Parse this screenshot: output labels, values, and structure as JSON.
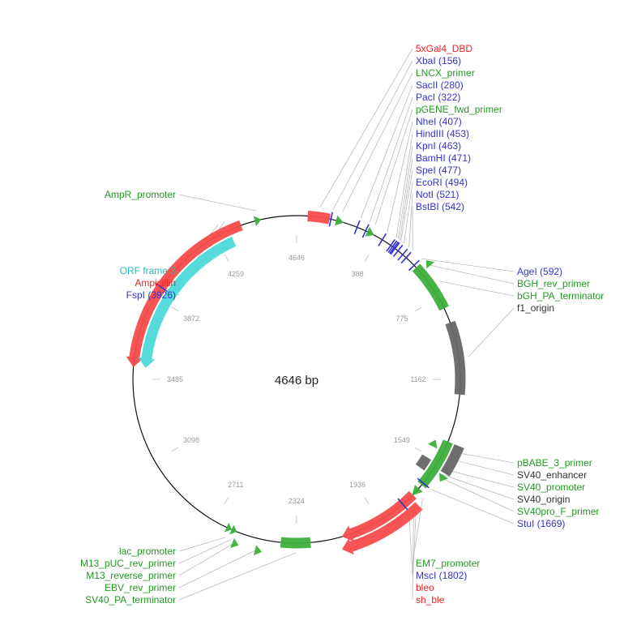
{
  "map": {
    "length": 4646,
    "center_label": "4646 bp",
    "ticks": [
      0,
      388,
      775,
      1162,
      1549,
      1936,
      2324,
      2711,
      3098,
      3485,
      3872,
      4259
    ],
    "tick_labels": [
      "4646",
      "388",
      "775",
      "1162",
      "1549",
      "1936",
      "2324",
      "2711",
      "3098",
      "3485",
      "3872",
      "4259"
    ]
  },
  "colors": {
    "orange_red": "#f74b4b",
    "cyan": "#4dd9d9",
    "green": "#3daf3d",
    "gray": "#666666",
    "blue": "#3333cc",
    "label_red": "#ee2222",
    "label_green": "#229922",
    "label_dark": "#333333",
    "label_cyan": "#22bbbb"
  },
  "features": [
    {
      "name": "5xGal4_DBD",
      "type": "feature",
      "start": 50,
      "end": 150,
      "dir": 0,
      "color": "#f74b4b",
      "track": 0
    },
    {
      "name": "LNCX_primer",
      "type": "primer",
      "start": 180,
      "end": 215,
      "dir": 1,
      "color": "#3daf3d",
      "track": 0
    },
    {
      "name": "pGENE_fwd_primer",
      "type": "primer",
      "start": 330,
      "end": 365,
      "dir": 1,
      "color": "#3daf3d",
      "track": 0
    },
    {
      "name": "BGH_rev_primer",
      "type": "primer",
      "start": 612,
      "end": 640,
      "dir": -1,
      "color": "#3daf3d",
      "track": 1
    },
    {
      "name": "bGH_PA_terminator",
      "type": "feature",
      "start": 605,
      "end": 830,
      "dir": 0,
      "color": "#3daf3d",
      "track": 0
    },
    {
      "name": "f1_origin",
      "type": "feature",
      "start": 900,
      "end": 1230,
      "dir": 0,
      "color": "#666666",
      "track": 0
    },
    {
      "name": "pBABE_3_primer",
      "type": "primer",
      "start": 1465,
      "end": 1500,
      "dir": -1,
      "color": "#3daf3d",
      "track": -1
    },
    {
      "name": "SV40_enhancer",
      "type": "feature",
      "start": 1450,
      "end": 1580,
      "dir": 0,
      "color": "#666666",
      "track": 1
    },
    {
      "name": "SV40_promoter",
      "type": "feature",
      "start": 1450,
      "end": 1680,
      "dir": 0,
      "color": "#3daf3d",
      "track": 0
    },
    {
      "name": "SV40_origin",
      "type": "feature",
      "start": 1560,
      "end": 1620,
      "dir": 0,
      "color": "#666666",
      "track": -1
    },
    {
      "name": "SV40pro_F_primer",
      "type": "primer",
      "start": 1590,
      "end": 1620,
      "dir": 1,
      "color": "#3daf3d",
      "track": 1
    },
    {
      "name": "EM7_promoter",
      "type": "primer",
      "start": 1700,
      "end": 1745,
      "dir": 1,
      "color": "#3daf3d",
      "track": 0
    },
    {
      "name": "bleo",
      "type": "feature",
      "start": 1740,
      "end": 2115,
      "dir": 1,
      "color": "#f74b4b",
      "track": 0
    },
    {
      "name": "sh_ble",
      "type": "feature",
      "start": 1755,
      "end": 2130,
      "dir": 1,
      "color": "#f74b4b",
      "track": 1
    },
    {
      "name": "SV40_PA_terminator",
      "type": "feature",
      "start": 2260,
      "end": 2395,
      "dir": 0,
      "color": "#3daf3d",
      "track": 0
    },
    {
      "name": "EBV_rev_primer",
      "type": "primer",
      "start": 2470,
      "end": 2500,
      "dir": -1,
      "color": "#3daf3d",
      "track": 1
    },
    {
      "name": "M13_reverse_primer",
      "type": "primer",
      "start": 2572,
      "end": 2600,
      "dir": -1,
      "color": "#3daf3d",
      "track": 1
    },
    {
      "name": "M13_pUC_rev_primer",
      "type": "primer",
      "start": 2600,
      "end": 2625,
      "dir": -1,
      "color": "#3daf3d",
      "track": 0
    },
    {
      "name": "lac_promoter",
      "type": "primer",
      "start": 2625,
      "end": 2650,
      "dir": -1,
      "color": "#3daf3d",
      "track": 0
    },
    {
      "name": "Ampicillin",
      "type": "feature",
      "start": 3540,
      "end": 4390,
      "dir": -1,
      "color": "#f74b4b",
      "track": 0
    },
    {
      "name": "ORF frame 3",
      "type": "feature",
      "start": 3540,
      "end": 4330,
      "dir": -1,
      "color": "#4dd9d9",
      "track": -1
    },
    {
      "name": "AmpR_promoter",
      "type": "primer",
      "start": 4455,
      "end": 4485,
      "dir": 1,
      "color": "#3daf3d",
      "track": 0
    }
  ],
  "sites": [
    {
      "name": "XbaI (156)",
      "pos": 156
    },
    {
      "name": "SacII (280)",
      "pos": 280
    },
    {
      "name": "PacI (322)",
      "pos": 322
    },
    {
      "name": "NheI (407)",
      "pos": 407
    },
    {
      "name": "HindIII (453)",
      "pos": 453
    },
    {
      "name": "KpnI (463)",
      "pos": 463
    },
    {
      "name": "BamHI (471)",
      "pos": 471
    },
    {
      "name": "SpeI (477)",
      "pos": 477
    },
    {
      "name": "EcoRI (494)",
      "pos": 494
    },
    {
      "name": "NotI (521)",
      "pos": 521
    },
    {
      "name": "BstBI (542)",
      "pos": 542
    },
    {
      "name": "AgeI (592)",
      "pos": 592
    },
    {
      "name": "StuI (1669)",
      "pos": 1669
    },
    {
      "name": "MscI (1802)",
      "pos": 1802
    },
    {
      "name": "FspI (3926)",
      "pos": 3926
    }
  ],
  "labels": {
    "top_right": [
      {
        "text": "5xGal4_DBD",
        "color": "#ee2222",
        "pos": 100
      },
      {
        "text": "XbaI (156)",
        "color": "#3333cc",
        "pos": 156
      },
      {
        "text": "LNCX_primer",
        "color": "#229922",
        "pos": 198
      },
      {
        "text": "SacII (280)",
        "color": "#3333cc",
        "pos": 280
      },
      {
        "text": "PacI (322)",
        "color": "#3333cc",
        "pos": 322
      },
      {
        "text": "pGENE_fwd_primer",
        "color": "#229922",
        "pos": 348
      },
      {
        "text": "NheI (407)",
        "color": "#3333cc",
        "pos": 407
      },
      {
        "text": "HindIII (453)",
        "color": "#3333cc",
        "pos": 453
      },
      {
        "text": "KpnI (463)",
        "color": "#3333cc",
        "pos": 463
      },
      {
        "text": "BamHI (471)",
        "color": "#3333cc",
        "pos": 471
      },
      {
        "text": "SpeI (477)",
        "color": "#3333cc",
        "pos": 477
      },
      {
        "text": "EcoRI (494)",
        "color": "#3333cc",
        "pos": 494
      },
      {
        "text": "NotI (521)",
        "color": "#3333cc",
        "pos": 521
      },
      {
        "text": "BstBI (542)",
        "color": "#3333cc",
        "pos": 542
      }
    ],
    "right_upper": [
      {
        "text": "AgeI (592)",
        "color": "#3333cc",
        "pos": 592
      },
      {
        "text": "BGH_rev_primer",
        "color": "#229922",
        "pos": 626
      },
      {
        "text": "bGH_PA_terminator",
        "color": "#229922",
        "pos": 717
      },
      {
        "text": "f1_origin",
        "color": "#333333",
        "pos": 1065
      }
    ],
    "right_lower": [
      {
        "text": "pBABE_3_primer",
        "color": "#229922",
        "pos": 1482
      },
      {
        "text": "SV40_enhancer",
        "color": "#333333",
        "pos": 1515
      },
      {
        "text": "SV40_promoter",
        "color": "#229922",
        "pos": 1565
      },
      {
        "text": "SV40_origin",
        "color": "#333333",
        "pos": 1590
      },
      {
        "text": "SV40pro_F_primer",
        "color": "#229922",
        "pos": 1605
      },
      {
        "text": "StuI (1669)",
        "color": "#3333cc",
        "pos": 1669
      }
    ],
    "bottom_mid": [
      {
        "text": "EM7_promoter",
        "color": "#229922",
        "pos": 1722
      },
      {
        "text": "MscI (1802)",
        "color": "#3333cc",
        "pos": 1802
      },
      {
        "text": "bleo",
        "color": "#ee2222",
        "pos": 1760
      },
      {
        "text": "sh_ble",
        "color": "#ee2222",
        "pos": 1775
      }
    ],
    "bottom_left": [
      {
        "text": "lac_promoter",
        "color": "#229922",
        "pos": 2637
      },
      {
        "text": "M13_pUC_rev_primer",
        "color": "#229922",
        "pos": 2612
      },
      {
        "text": "M13_reverse_primer",
        "color": "#229922",
        "pos": 2586
      },
      {
        "text": "EBV_rev_primer",
        "color": "#229922",
        "pos": 2485
      },
      {
        "text": "SV40_PA_terminator",
        "color": "#229922",
        "pos": 2327
      }
    ],
    "left": [
      {
        "text": "AmpR_promoter",
        "color": "#229922",
        "pos": 4470
      },
      {
        "text": "ORF frame 3",
        "color": "#22bbbb",
        "pos": 4300
      },
      {
        "text": "Ampicillin",
        "color": "#ee2222",
        "pos": 4330
      },
      {
        "text": "FspI (3926)",
        "color": "#3333cc",
        "pos": 3926
      }
    ]
  }
}
